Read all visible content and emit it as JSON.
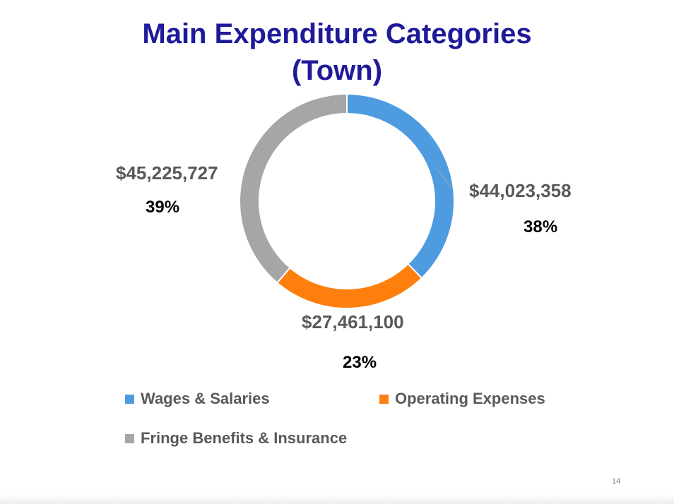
{
  "title_line1": "Main Expenditure Categories",
  "title_line2": "(Town)",
  "page_number": "14",
  "chart_data": {
    "type": "pie",
    "variant": "donut",
    "title": "Main Expenditure Categories (Town)",
    "categories": [
      "Wages & Salaries",
      "Operating Expenses",
      "Fringe Benefits & Insurance"
    ],
    "values": [
      44023358,
      27461100,
      45225727
    ],
    "value_labels": [
      "$44,023,358",
      "$27,461,100",
      "$45,225,727"
    ],
    "percent_labels": [
      "38%",
      "23%",
      "39%"
    ],
    "colors": [
      "#4e9be0",
      "#ff7f0e",
      "#a6a6a6"
    ],
    "legend_position": "bottom"
  }
}
